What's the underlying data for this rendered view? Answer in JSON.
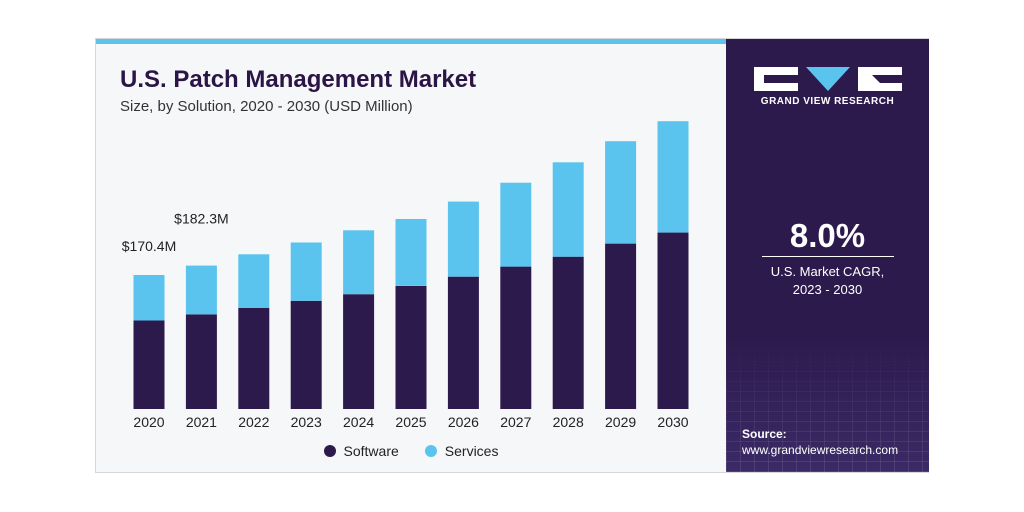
{
  "header": {
    "title": "U.S. Patch Management Market",
    "subtitle": "Size, by Solution, 2020 - 2030 (USD Million)"
  },
  "legend": {
    "software": "Software",
    "services": "Services"
  },
  "colors": {
    "software": "#2d1a4d",
    "services": "#5bc4ee",
    "accent_bar": "#5bc4ee",
    "panel_bg": "#2d1a4d"
  },
  "sidebar": {
    "brand": "GRAND VIEW RESEARCH",
    "cagr_value": "8.0%",
    "cagr_label_line1": "U.S. Market CAGR,",
    "cagr_label_line2": "2023 - 2030",
    "source_heading": "Source:",
    "source_url": "www.grandviewresearch.com"
  },
  "chart_data": {
    "type": "bar",
    "stacked": true,
    "title": "U.S. Patch Management Market",
    "subtitle": "Size, by Solution, 2020 - 2030 (USD Million)",
    "categories": [
      "2020",
      "2021",
      "2022",
      "2023",
      "2024",
      "2025",
      "2026",
      "2027",
      "2028",
      "2029",
      "2030"
    ],
    "series": [
      {
        "name": "Software",
        "values": [
          112.5,
          120.3,
          128.7,
          137.5,
          145.9,
          156.4,
          168.2,
          181.0,
          193.6,
          210.2,
          224.3
        ]
      },
      {
        "name": "Services",
        "values": [
          57.9,
          62.0,
          67.9,
          74.1,
          81.2,
          85.1,
          95.4,
          106.7,
          120.0,
          130.2,
          141.5
        ]
      }
    ],
    "data_labels": [
      {
        "category": "2020",
        "text": "$170.4M"
      },
      {
        "category": "2021",
        "text": "$182.3M"
      }
    ],
    "ylim": [
      0,
      375
    ],
    "grid": false,
    "legend_position": "bottom"
  }
}
